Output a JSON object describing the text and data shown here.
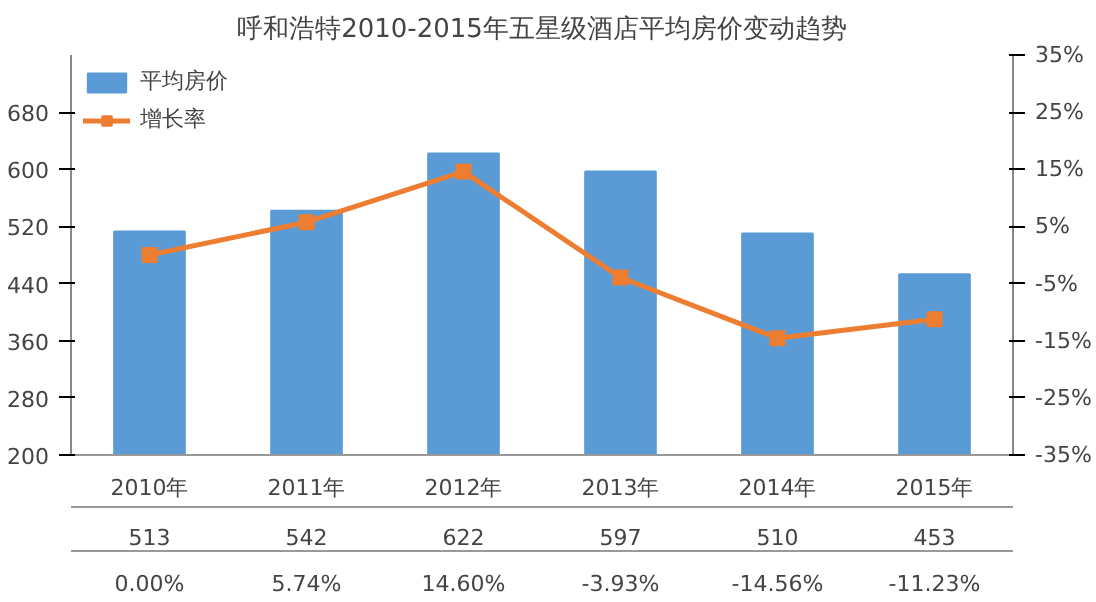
{
  "chart_data": {
    "type": "bar",
    "title": "呼和浩特2010-2015年五星级酒店平均房价变动趋势",
    "categories": [
      "2010年",
      "2011年",
      "2012年",
      "2013年",
      "2014年",
      "2015年"
    ],
    "series": [
      {
        "name": "平均房价",
        "color": "#5b9bd5",
        "values": [
          513,
          542,
          622,
          597,
          510,
          453
        ],
        "value_labels": [
          "513",
          "542",
          "622",
          "597",
          "510",
          "453"
        ]
      },
      {
        "name": "增长率",
        "type": "line",
        "axis": "y2",
        "color": "#ed7d31",
        "marker": "square",
        "values": [
          0.0,
          5.74,
          14.6,
          -3.93,
          -14.56,
          -11.23
        ],
        "value_labels": [
          "0.00%",
          "5.74%",
          "14.60%",
          "-3.93%",
          "-14.56%",
          "-11.23%"
        ]
      }
    ],
    "ylim": [
      200,
      760
    ],
    "yticks": [
      200,
      280,
      360,
      440,
      520,
      600,
      680
    ],
    "y2lim": [
      -35,
      35
    ],
    "y2ticks": [
      {
        "value": -35,
        "label": "-35%"
      },
      {
        "value": -25,
        "label": "-25%"
      },
      {
        "value": -15,
        "label": "-15%"
      },
      {
        "value": -5,
        "label": "-5%"
      },
      {
        "value": 5,
        "label": "5%"
      },
      {
        "value": 15,
        "label": "15%"
      },
      {
        "value": 25,
        "label": "25%"
      },
      {
        "value": 35,
        "label": "35%"
      }
    ],
    "legend": "top left"
  }
}
